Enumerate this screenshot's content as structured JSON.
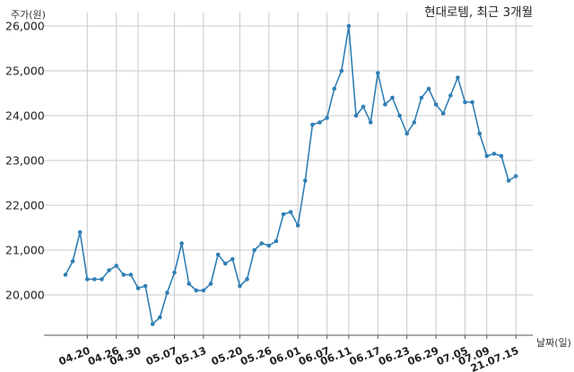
{
  "chart_data": {
    "type": "line",
    "title": "현대로템, 최근 3개월",
    "ylabel": "주가(원)",
    "xlabel": "날짜(일)",
    "ylim": [
      19100,
      26300
    ],
    "y_ticks": [
      20000,
      21000,
      22000,
      23000,
      24000,
      25000,
      26000
    ],
    "y_tick_labels": [
      "20,000",
      "21,000",
      "22,000",
      "23,000",
      "24,000",
      "25,000",
      "26,000"
    ],
    "x_tick_labels": [
      "04.20",
      "04.26",
      "04.30",
      "05.07",
      "05.13",
      "05.20",
      "05.26",
      "06.01",
      "06.07",
      "06.11",
      "06.17",
      "06.23",
      "06.29",
      "07.05",
      "07.09",
      "21.07.15"
    ],
    "x_tick_indices": [
      3,
      7,
      10,
      15,
      19,
      24,
      28,
      32,
      36,
      39,
      43,
      47,
      51,
      55,
      58,
      62
    ],
    "grid": true,
    "series": [
      {
        "color": "#2f7fb5",
        "values": [
          20450,
          20750,
          21400,
          20350,
          20350,
          20350,
          20550,
          20650,
          20450,
          20450,
          20150,
          20200,
          19350,
          19500,
          20050,
          20500,
          21150,
          20250,
          20100,
          20100,
          20250,
          20900,
          20700,
          20800,
          20200,
          20350,
          21000,
          21150,
          21100,
          21200,
          21800,
          21850,
          21550,
          22550,
          23800,
          23850,
          23950,
          24600,
          25000,
          26000,
          24000,
          24200,
          23850,
          24950,
          24250,
          24400,
          24000,
          23600,
          23850,
          24400,
          24600,
          24250,
          24050,
          24450,
          24850,
          24300,
          24300,
          23600,
          23100,
          23150,
          23100,
          22550,
          22650
        ]
      }
    ]
  }
}
